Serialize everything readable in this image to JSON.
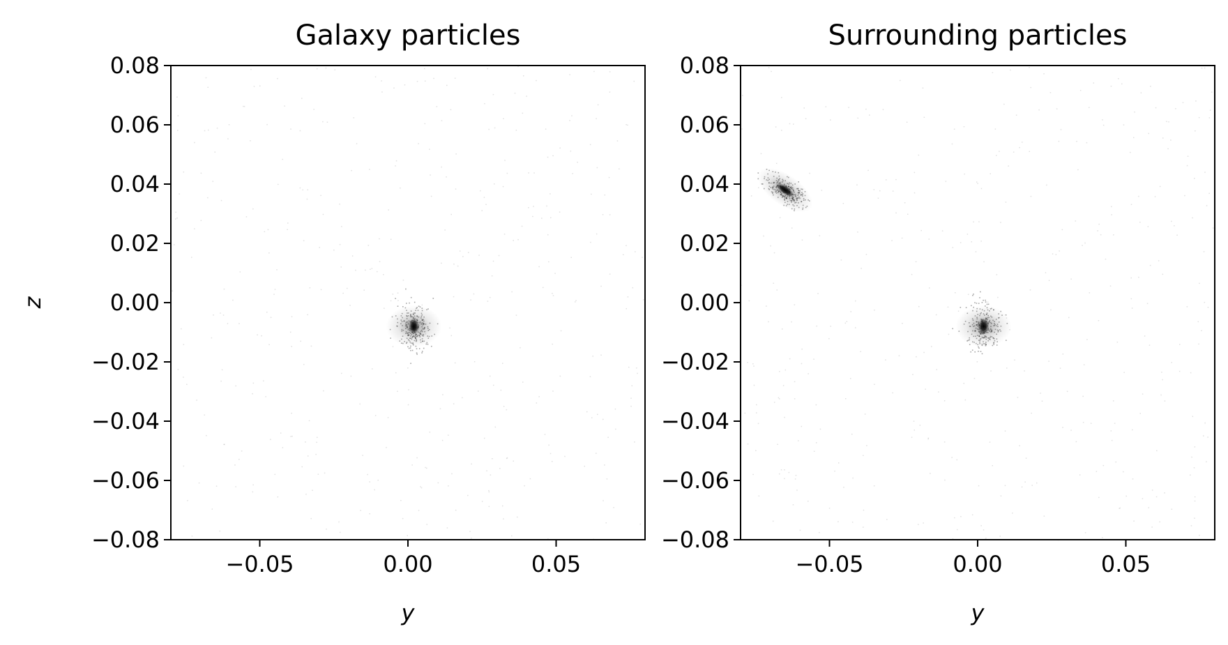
{
  "chart_data": [
    {
      "type": "scatter",
      "title": "Galaxy particles",
      "xlabel": "y",
      "ylabel": "z",
      "xlim": [
        -0.08,
        0.08
      ],
      "ylim": [
        -0.08,
        0.08
      ],
      "xticks": [
        -0.05,
        0.0,
        0.05
      ],
      "xtick_labels": [
        "−0.05",
        "0.00",
        "0.05"
      ],
      "yticks": [
        0.08,
        0.06,
        0.04,
        0.02,
        0.0,
        -0.02,
        -0.04,
        -0.06,
        -0.08
      ],
      "ytick_labels": [
        "0.08",
        "0.06",
        "0.04",
        "0.02",
        "0.00",
        "−0.02",
        "−0.04",
        "−0.06",
        "−0.08"
      ],
      "grid": false,
      "clumps": [
        {
          "center": [
            0.002,
            -0.008
          ],
          "size": "compact",
          "orientation": "near-vertical"
        }
      ]
    },
    {
      "type": "scatter",
      "title": "Surrounding particles",
      "xlabel": "y",
      "ylabel": "",
      "xlim": [
        -0.08,
        0.08
      ],
      "ylim": [
        -0.08,
        0.08
      ],
      "xticks": [
        -0.05,
        0.0,
        0.05
      ],
      "xtick_labels": [
        "−0.05",
        "0.00",
        "0.05"
      ],
      "yticks": [
        0.08,
        0.06,
        0.04,
        0.02,
        0.0,
        -0.02,
        -0.04,
        -0.06,
        -0.08
      ],
      "ytick_labels": [
        "0.08",
        "0.06",
        "0.04",
        "0.02",
        "0.00",
        "−0.02",
        "−0.04",
        "−0.06",
        "−0.08"
      ],
      "grid": false,
      "clumps": [
        {
          "center": [
            -0.065,
            0.038
          ],
          "size": "elongated",
          "orientation": "diagonal"
        },
        {
          "center": [
            0.002,
            -0.008
          ],
          "size": "compact",
          "orientation": "near-vertical"
        }
      ]
    }
  ]
}
